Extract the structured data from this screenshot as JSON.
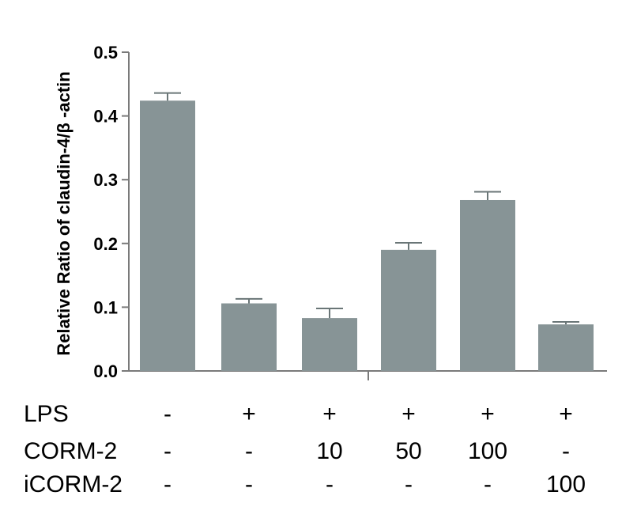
{
  "chart_data": {
    "type": "bar",
    "title": "",
    "xlabel": "",
    "ylabel": "Relative Ratio of claudin-4/β -actin",
    "ylim": [
      0,
      0.5
    ],
    "yticks": [
      {
        "value": 0.0,
        "label": "0.0"
      },
      {
        "value": 0.1,
        "label": "0.1"
      },
      {
        "value": 0.2,
        "label": "0.2"
      },
      {
        "value": 0.3,
        "label": "0.3"
      },
      {
        "value": 0.4,
        "label": "0.4"
      },
      {
        "value": 0.5,
        "label": "0.5"
      }
    ],
    "values": [
      0.424,
      0.106,
      0.083,
      0.19,
      0.268,
      0.073
    ],
    "errors": [
      0.012,
      0.007,
      0.015,
      0.011,
      0.013,
      0.004
    ],
    "bar_color": "#879496",
    "grid": false,
    "legend": "none"
  },
  "conditions": [
    {
      "label": "LPS",
      "values": [
        "-",
        "+",
        "+",
        "+",
        "+",
        "+"
      ]
    },
    {
      "label": "CORM-2",
      "values": [
        "-",
        "-",
        "10",
        "50",
        "100",
        "-"
      ]
    },
    {
      "label": "iCORM-2",
      "values": [
        "-",
        "-",
        "-",
        "-",
        "-",
        "100"
      ]
    }
  ]
}
